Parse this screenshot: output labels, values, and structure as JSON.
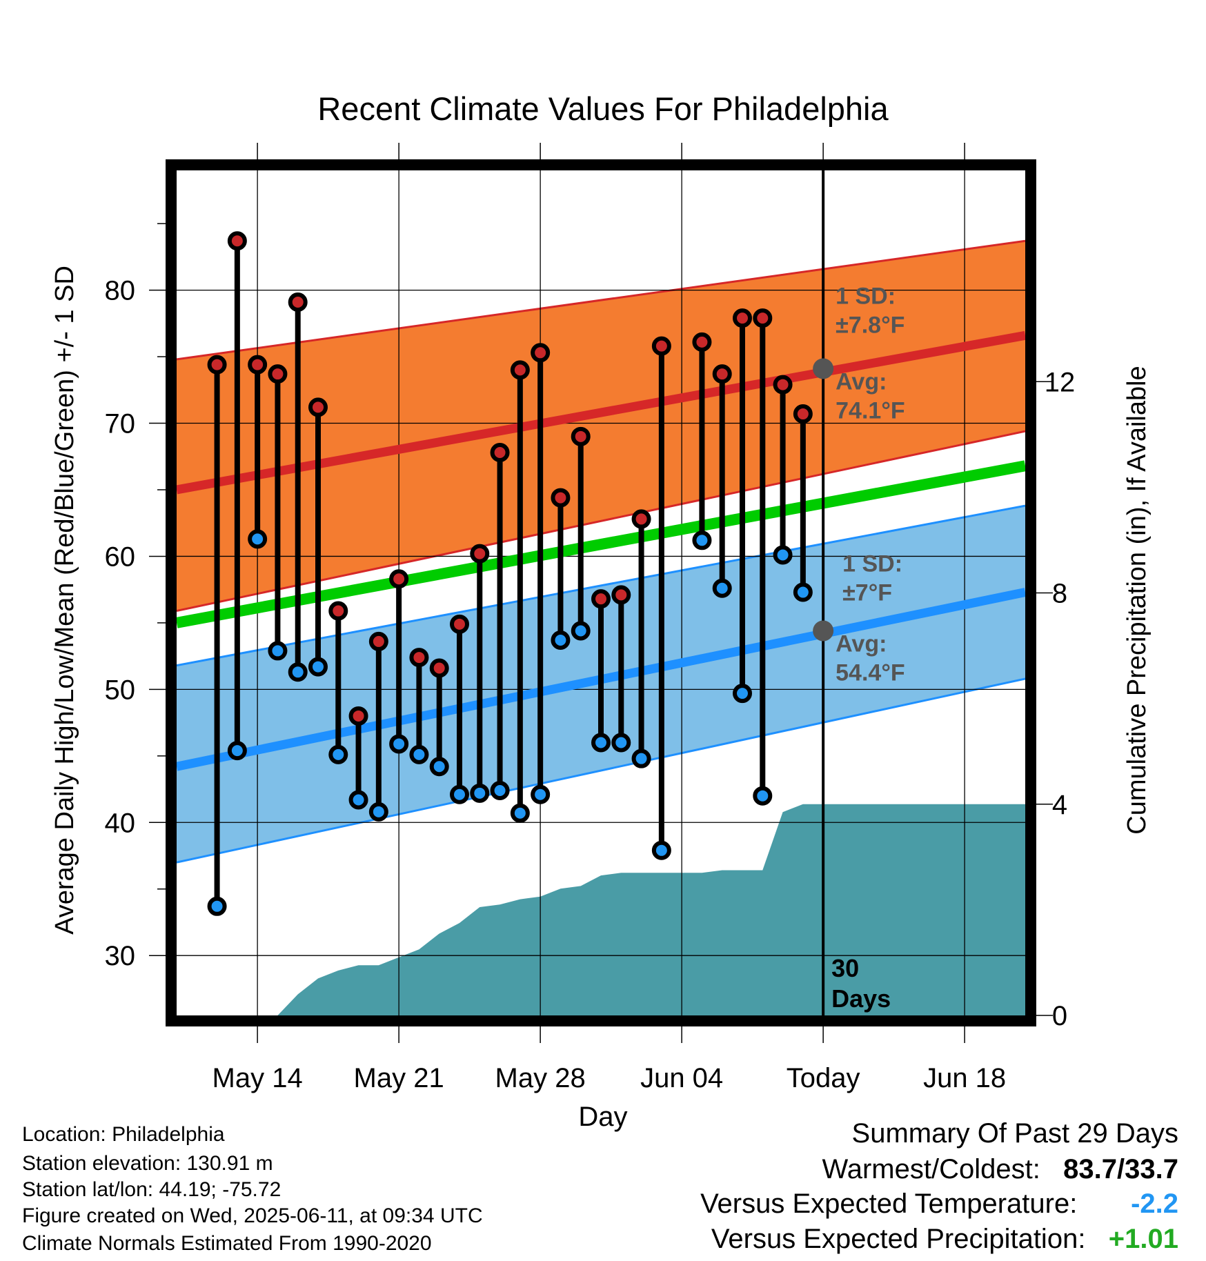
{
  "chart_data": {
    "type": "line",
    "title": "Recent Climate Values For Philadelphia",
    "xlabel": "Day",
    "ylabel_left": "Average Daily High/Low/Mean (Red/Blue/Green) +/- 1 SD",
    "ylabel_right": "Cumulative Precipitation (in), If Available",
    "x_range": [
      "2025-05-10",
      "2025-06-21"
    ],
    "y_left_range": [
      25.5,
      89
    ],
    "y_right_range": [
      0,
      16
    ],
    "y_left_ticks": [
      30,
      40,
      50,
      60,
      70,
      80
    ],
    "y_right_ticks": [
      0,
      4,
      8,
      12
    ],
    "x_ticks": [
      {
        "date": "2025-05-14",
        "label": "May 14"
      },
      {
        "date": "2025-05-21",
        "label": "May 21"
      },
      {
        "date": "2025-05-28",
        "label": "May 28"
      },
      {
        "date": "2025-06-04",
        "label": "Jun 04"
      },
      {
        "date": "2025-06-11",
        "label": "Today"
      },
      {
        "date": "2025-06-18",
        "label": "Jun 18"
      }
    ],
    "today": "2025-06-11",
    "today_label": "30 Days",
    "grid": true,
    "normals": {
      "dates": [
        "2025-05-10",
        "2025-06-21"
      ],
      "high_mean": [
        65.0,
        76.6
      ],
      "high_upper": [
        74.8,
        83.7
      ],
      "high_lower": [
        55.9,
        69.4
      ],
      "mean": [
        55.0,
        66.8
      ],
      "low_mean": [
        44.2,
        57.3
      ],
      "low_upper": [
        51.8,
        63.8
      ],
      "low_lower": [
        37.0,
        50.8
      ]
    },
    "series": [
      {
        "name": "High",
        "dates": [
          "2025-05-12",
          "2025-05-13",
          "2025-05-14",
          "2025-05-15",
          "2025-05-16",
          "2025-05-17",
          "2025-05-18",
          "2025-05-19",
          "2025-05-20",
          "2025-05-21",
          "2025-05-22",
          "2025-05-23",
          "2025-05-24",
          "2025-05-25",
          "2025-05-26",
          "2025-05-27",
          "2025-05-28",
          "2025-05-29",
          "2025-05-30",
          "2025-05-31",
          "2025-06-01",
          "2025-06-02",
          "2025-06-03",
          "2025-06-05",
          "2025-06-06",
          "2025-06-07",
          "2025-06-08",
          "2025-06-09",
          "2025-06-10"
        ],
        "values": [
          74.4,
          83.7,
          74.4,
          73.7,
          79.1,
          71.2,
          55.9,
          48.0,
          53.6,
          58.3,
          52.4,
          51.6,
          54.9,
          60.2,
          67.8,
          74.0,
          75.3,
          64.4,
          69.0,
          56.8,
          57.1,
          62.8,
          75.8,
          76.1,
          73.7,
          77.9,
          77.9,
          72.9,
          70.7
        ]
      },
      {
        "name": "Low",
        "dates": [
          "2025-05-12",
          "2025-05-13",
          "2025-05-14",
          "2025-05-15",
          "2025-05-16",
          "2025-05-17",
          "2025-05-18",
          "2025-05-19",
          "2025-05-20",
          "2025-05-21",
          "2025-05-22",
          "2025-05-23",
          "2025-05-24",
          "2025-05-25",
          "2025-05-26",
          "2025-05-27",
          "2025-05-28",
          "2025-05-29",
          "2025-05-30",
          "2025-05-31",
          "2025-06-01",
          "2025-06-02",
          "2025-06-03",
          "2025-06-05",
          "2025-06-06",
          "2025-06-07",
          "2025-06-08",
          "2025-06-09",
          "2025-06-10"
        ],
        "values": [
          33.7,
          45.4,
          61.3,
          52.9,
          51.3,
          51.7,
          45.1,
          41.7,
          40.8,
          45.9,
          45.1,
          44.2,
          42.1,
          42.2,
          42.4,
          40.7,
          42.1,
          53.7,
          54.4,
          46.0,
          46.0,
          44.8,
          37.9,
          61.2,
          57.6,
          49.7,
          42.0,
          60.1,
          57.3
        ]
      }
    ],
    "precip": {
      "dates": [
        "2025-05-10",
        "2025-05-15",
        "2025-05-16",
        "2025-05-17",
        "2025-05-18",
        "2025-05-19",
        "2025-05-20",
        "2025-05-21",
        "2025-05-22",
        "2025-05-23",
        "2025-05-24",
        "2025-05-25",
        "2025-05-26",
        "2025-05-27",
        "2025-05-28",
        "2025-05-29",
        "2025-05-30",
        "2025-05-31",
        "2025-06-01",
        "2025-06-02",
        "2025-06-03",
        "2025-06-05",
        "2025-06-06",
        "2025-06-07",
        "2025-06-08",
        "2025-06-09",
        "2025-06-10",
        "2025-06-11",
        "2025-06-21"
      ],
      "values": [
        0,
        0,
        0.4,
        0.7,
        0.85,
        0.95,
        0.95,
        1.1,
        1.25,
        1.55,
        1.75,
        2.05,
        2.1,
        2.2,
        2.25,
        2.4,
        2.45,
        2.65,
        2.7,
        2.7,
        2.7,
        2.7,
        2.75,
        2.75,
        2.75,
        3.85,
        4.0,
        4.0,
        4.0
      ]
    },
    "annotations": {
      "high": {
        "sd_label": "1 SD:",
        "sd_value": "±7.8°F",
        "avg_label": "Avg:",
        "avg_value": "74.1°F",
        "value": 74.1
      },
      "low": {
        "sd_label": "1 SD:",
        "sd_value": "±7°F",
        "avg_label": "Avg:",
        "avg_value": "54.4°F",
        "value": 54.4
      }
    }
  },
  "info": {
    "location": "Location: Philadelphia",
    "elevation": "Station elevation: 130.91 m",
    "latlon": "Station lat/lon: 44.19; -75.72",
    "created": "Figure created on Wed, 2025-06-11, at 09:34 UTC",
    "normals": "Climate Normals Estimated From 1990-2020"
  },
  "summary": {
    "title": "Summary Of Past 29 Days",
    "warmest_label": "Warmest/Coldest:",
    "warmest_value": "83.7/33.7",
    "temp_label": "Versus Expected Temperature:",
    "temp_value": "-2.2",
    "precip_label": "Versus Expected Precipitation:",
    "precip_value": "+1.01"
  },
  "colors": {
    "high_band": "#f47c30",
    "high_line": "#d62728",
    "low_band": "#7fbfe8",
    "low_line": "#1e90ff",
    "mean_line": "#00cc00",
    "precip": "#4a9ca6",
    "high_dot": "#c8282a",
    "low_dot": "#2196f3",
    "annotation": "#555555",
    "temp_value": "#2196f3",
    "precip_value": "#22aa22"
  }
}
